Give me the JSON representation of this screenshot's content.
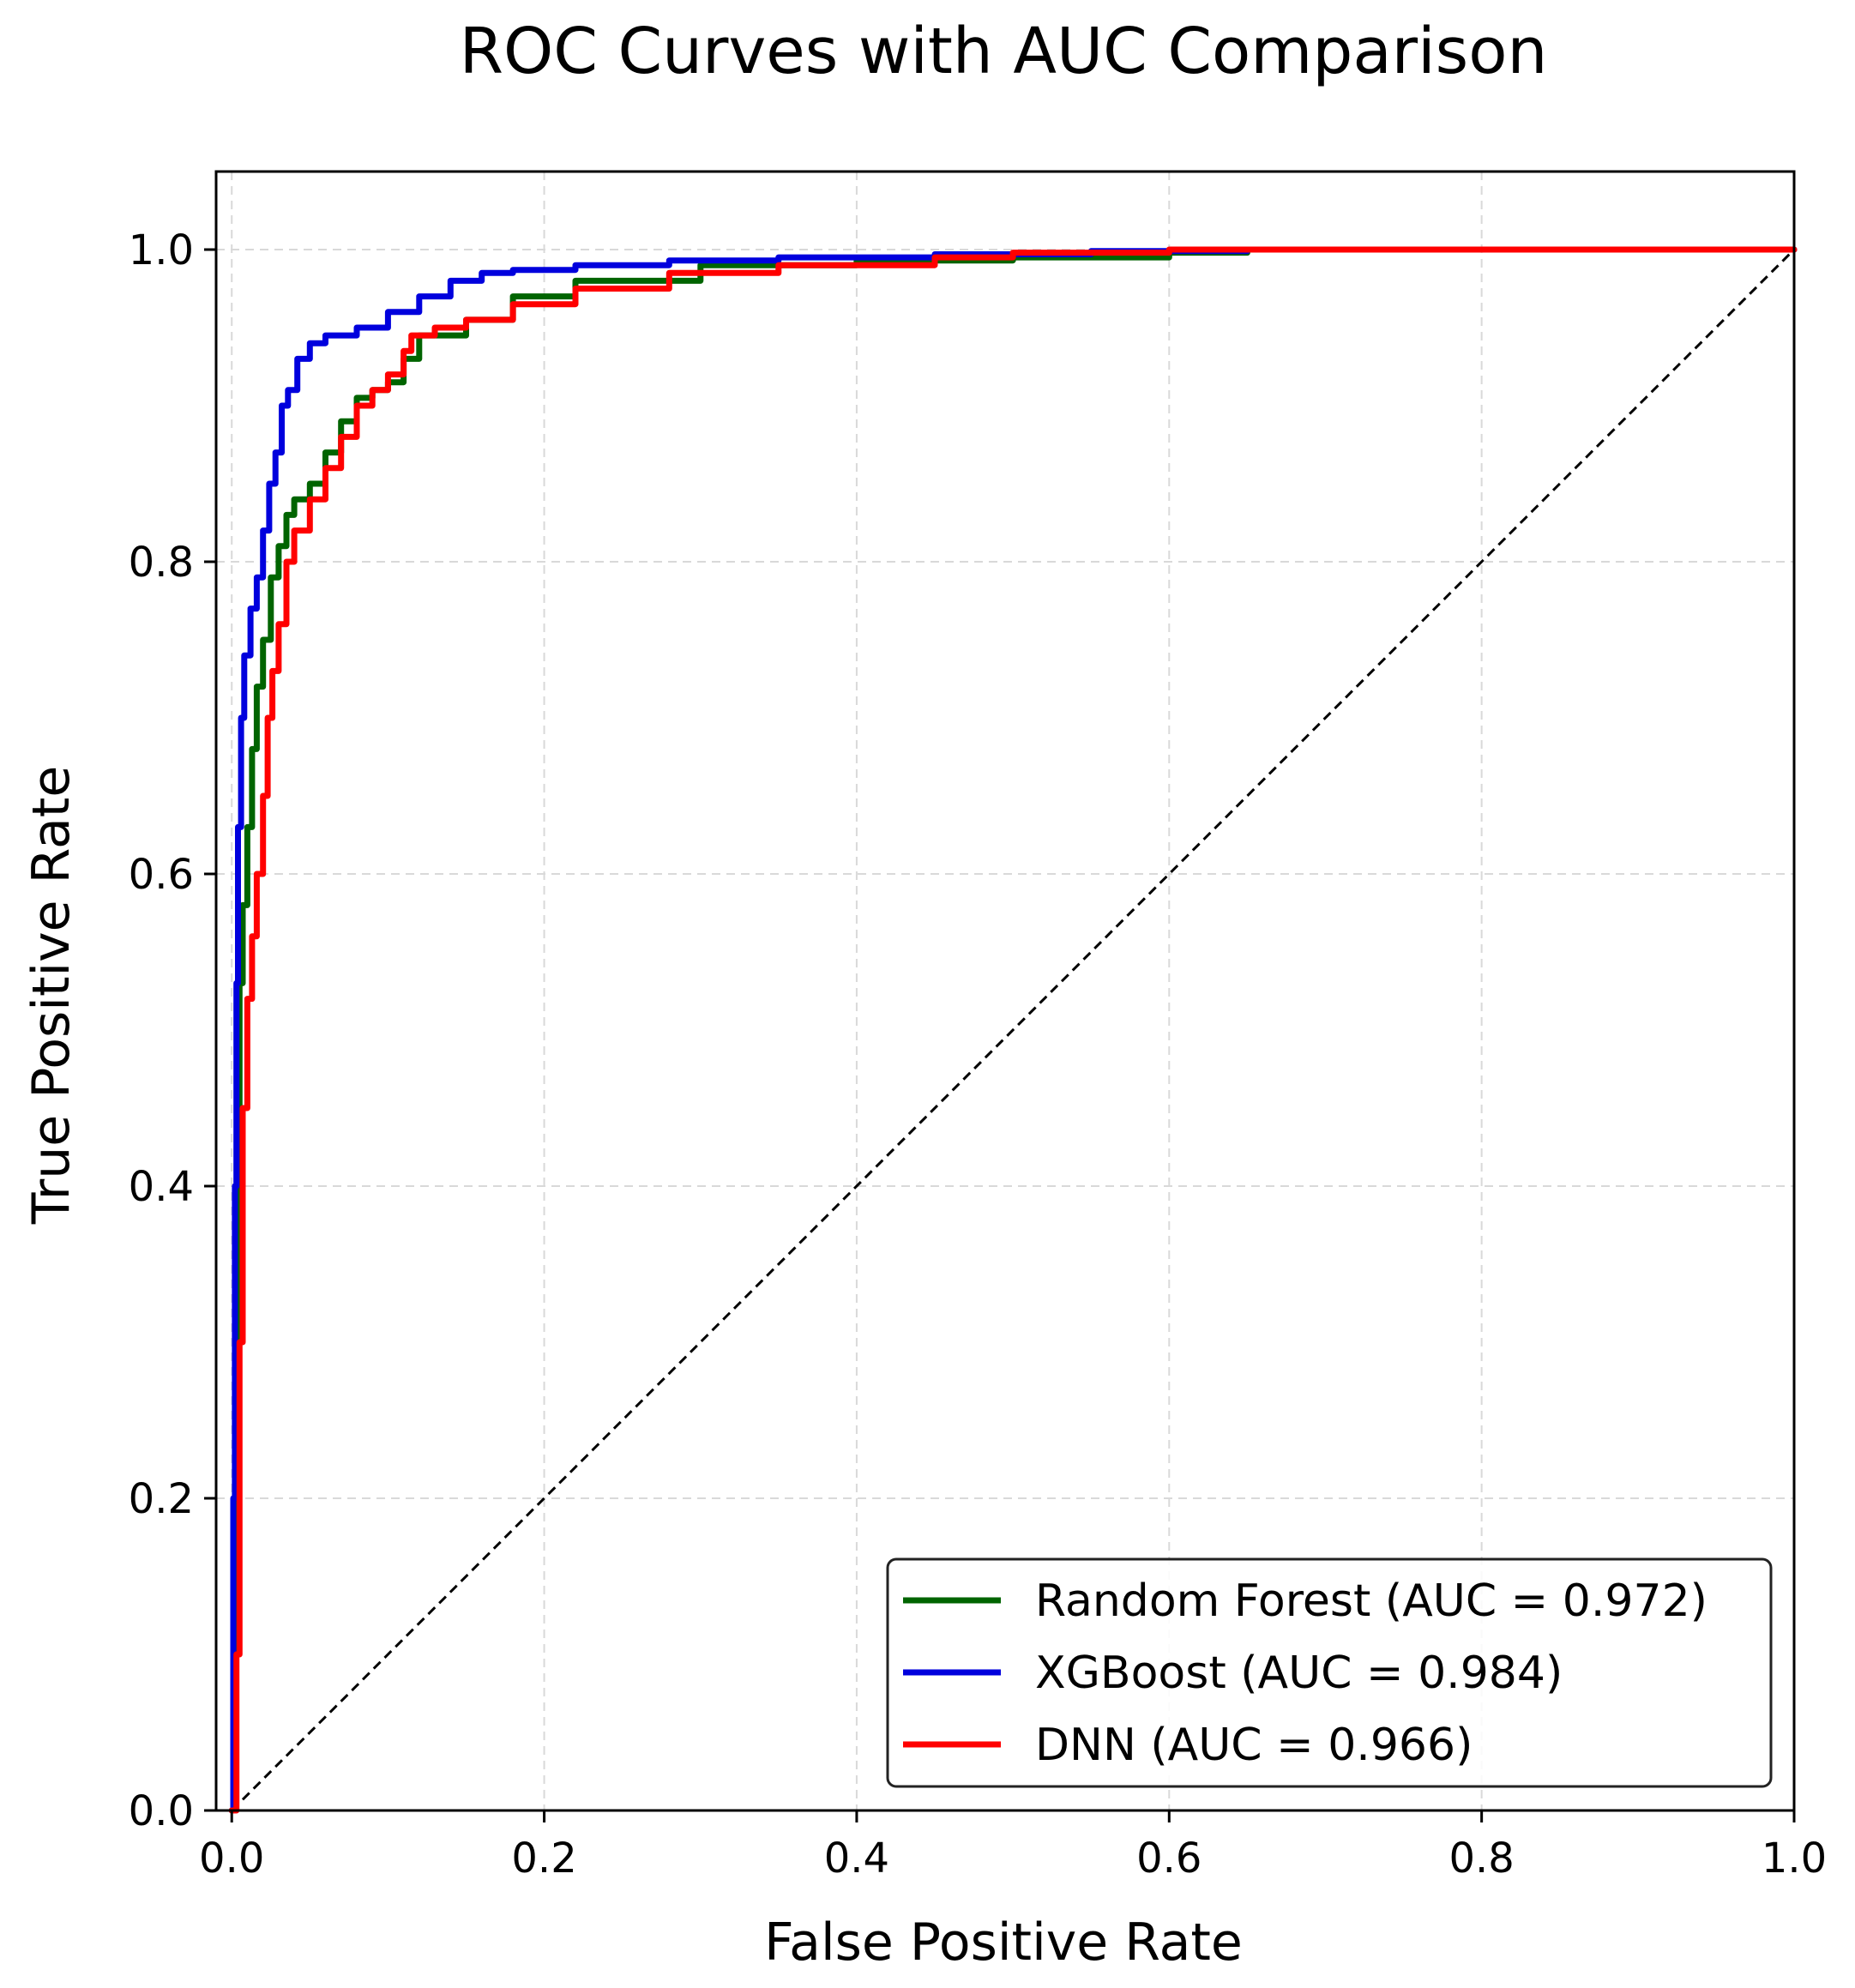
{
  "chart_data": {
    "type": "line",
    "title": "ROC Curves with AUC Comparison",
    "xlabel": "False Positive Rate",
    "ylabel": "True Positive Rate",
    "xlim": [
      -0.01,
      1.0
    ],
    "ylim": [
      0.0,
      1.05
    ],
    "xticks": [
      "0.0",
      "0.2",
      "0.4",
      "0.6",
      "0.8",
      "1.0"
    ],
    "yticks": [
      "0.0",
      "0.2",
      "0.4",
      "0.6",
      "0.8",
      "1.0"
    ],
    "grid": true,
    "legend_position": "lower-right",
    "diagonal": {
      "x": [
        0,
        1
      ],
      "y": [
        0,
        1
      ],
      "color": "#000000",
      "style": "dashed"
    },
    "series": [
      {
        "name": "Random Forest (AUC = 0.972)",
        "color": "#006400",
        "x": [
          0,
          0.002,
          0.003,
          0.004,
          0.005,
          0.007,
          0.01,
          0.013,
          0.016,
          0.02,
          0.025,
          0.03,
          0.035,
          0.04,
          0.05,
          0.06,
          0.07,
          0.08,
          0.09,
          0.1,
          0.11,
          0.12,
          0.15,
          0.18,
          0.22,
          0.3,
          0.4,
          0.5,
          0.6,
          0.65,
          1.0
        ],
        "y": [
          0,
          0.1,
          0.3,
          0.45,
          0.53,
          0.58,
          0.63,
          0.68,
          0.72,
          0.75,
          0.79,
          0.81,
          0.83,
          0.84,
          0.85,
          0.87,
          0.89,
          0.905,
          0.91,
          0.915,
          0.93,
          0.945,
          0.955,
          0.97,
          0.98,
          0.99,
          0.993,
          0.995,
          0.998,
          1.0,
          1.0
        ]
      },
      {
        "name": "XGBoost (AUC = 0.984)",
        "color": "#0000dd",
        "x": [
          0,
          0.001,
          0.002,
          0.003,
          0.004,
          0.006,
          0.008,
          0.012,
          0.016,
          0.02,
          0.024,
          0.028,
          0.032,
          0.036,
          0.042,
          0.05,
          0.06,
          0.08,
          0.1,
          0.12,
          0.14,
          0.16,
          0.18,
          0.22,
          0.28,
          0.35,
          0.45,
          0.55,
          0.65,
          1.0
        ],
        "y": [
          0,
          0.2,
          0.4,
          0.53,
          0.63,
          0.7,
          0.74,
          0.77,
          0.79,
          0.82,
          0.85,
          0.87,
          0.9,
          0.91,
          0.93,
          0.94,
          0.945,
          0.95,
          0.96,
          0.97,
          0.98,
          0.985,
          0.987,
          0.99,
          0.993,
          0.995,
          0.997,
          0.999,
          1.0,
          1.0
        ]
      },
      {
        "name": "DNN (AUC = 0.966)",
        "color": "#ff0000",
        "x": [
          0,
          0.003,
          0.005,
          0.007,
          0.01,
          0.013,
          0.016,
          0.02,
          0.023,
          0.026,
          0.03,
          0.035,
          0.04,
          0.05,
          0.06,
          0.07,
          0.08,
          0.09,
          0.1,
          0.11,
          0.115,
          0.13,
          0.15,
          0.18,
          0.22,
          0.28,
          0.35,
          0.45,
          0.5,
          0.6,
          0.65,
          1.0
        ],
        "y": [
          0,
          0.1,
          0.3,
          0.45,
          0.52,
          0.56,
          0.6,
          0.65,
          0.7,
          0.73,
          0.76,
          0.8,
          0.82,
          0.84,
          0.86,
          0.88,
          0.9,
          0.91,
          0.92,
          0.935,
          0.945,
          0.95,
          0.955,
          0.965,
          0.975,
          0.985,
          0.99,
          0.995,
          0.998,
          1.0,
          1.0,
          1.0
        ]
      }
    ]
  }
}
